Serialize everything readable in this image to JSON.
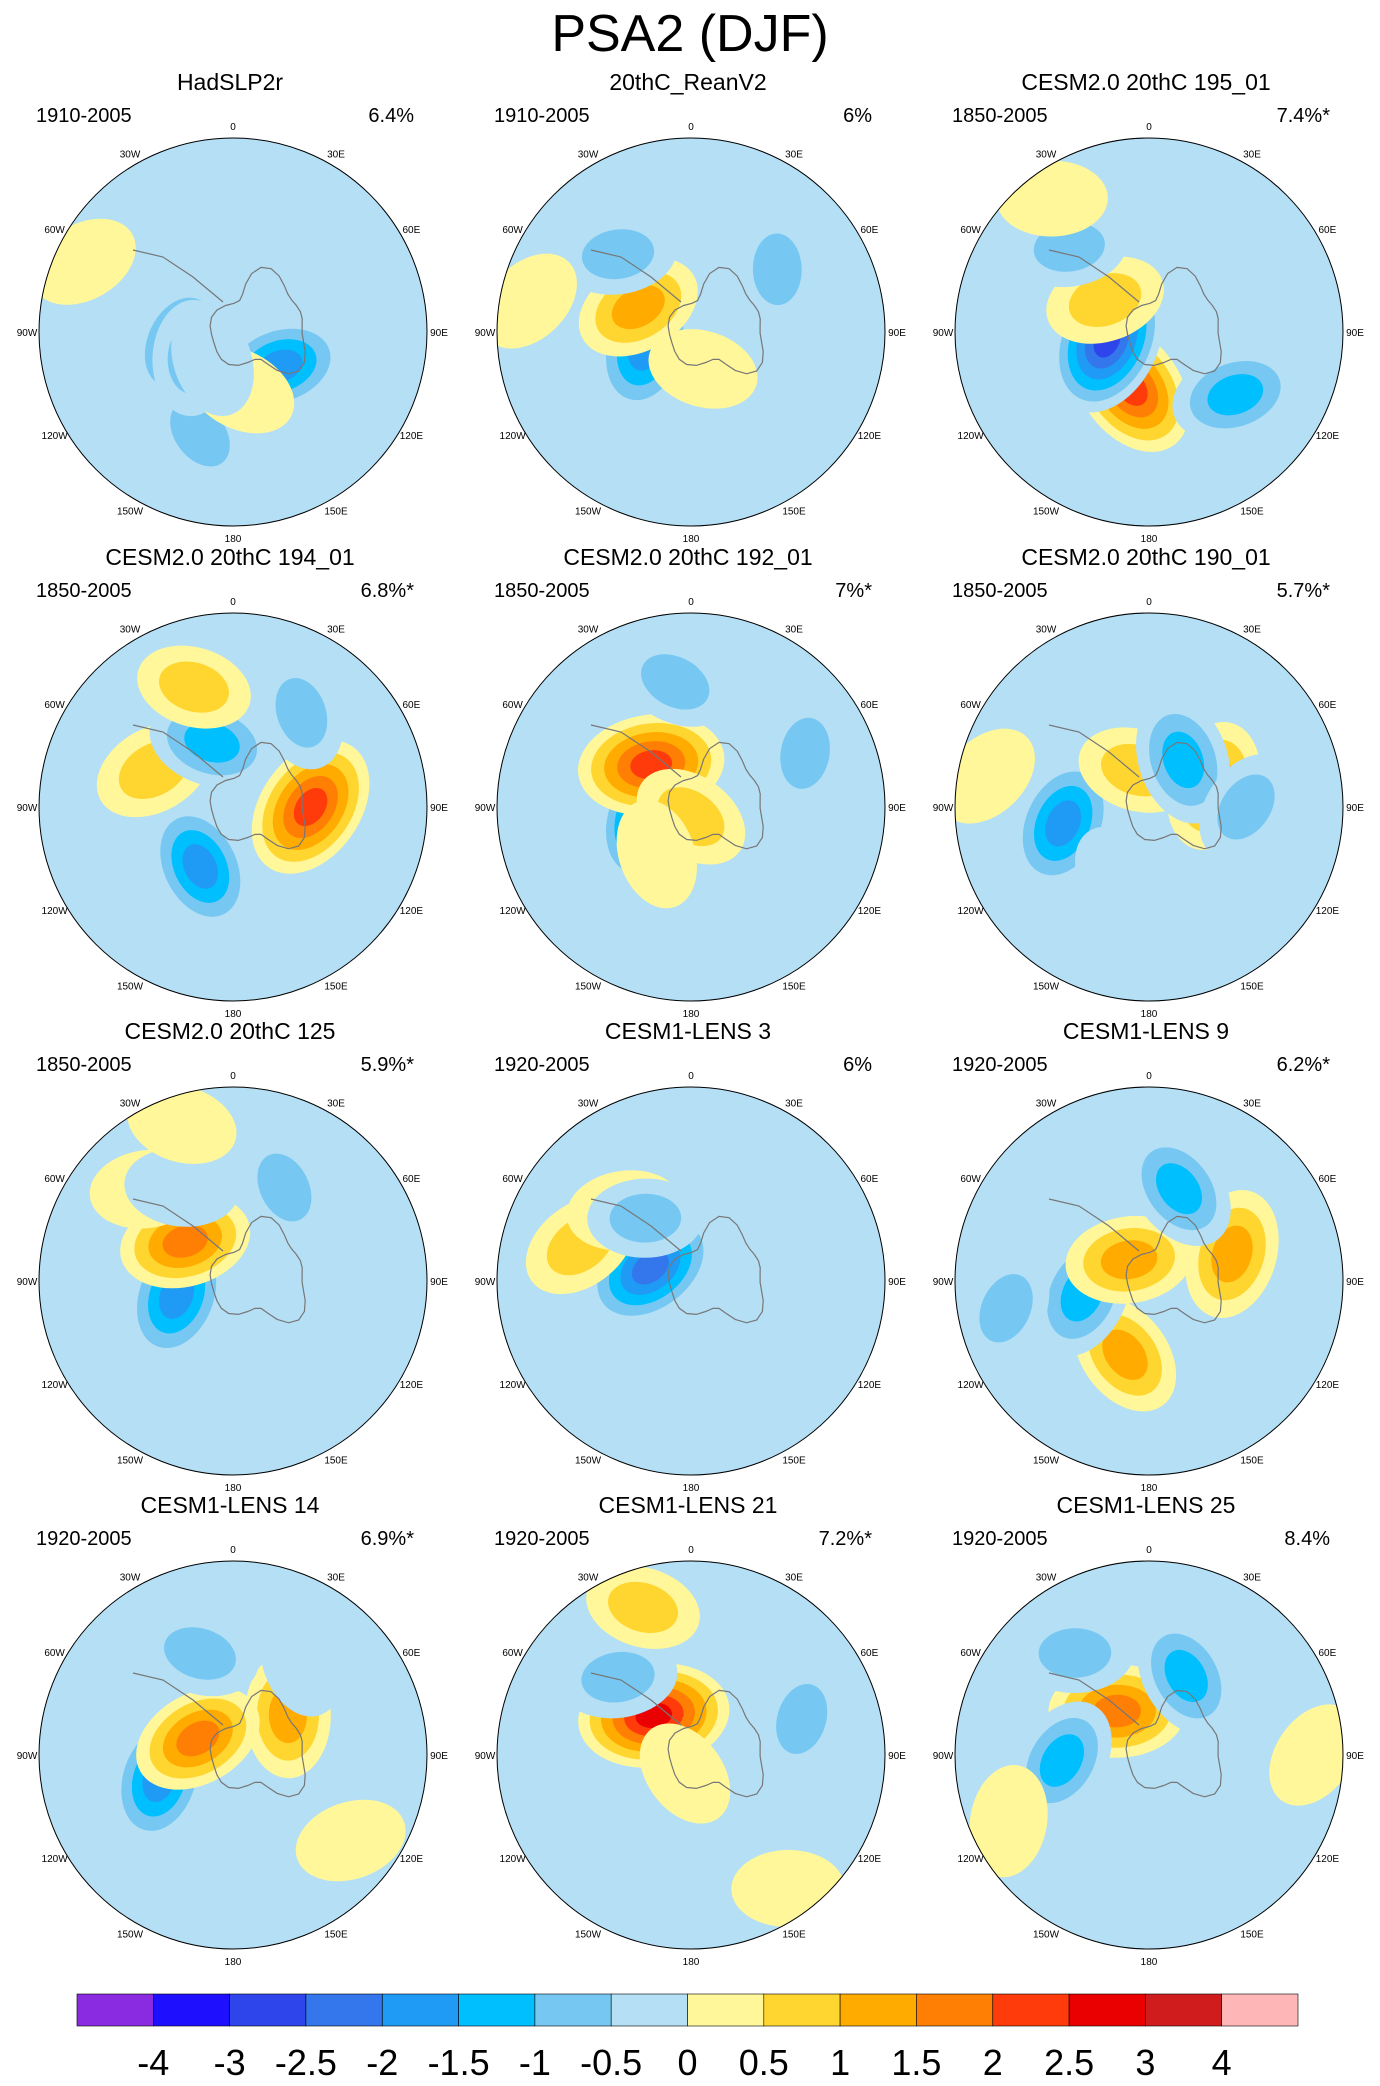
{
  "title": "PSA2 (DJF)",
  "chart_data": {
    "type": "polar_contour_maps",
    "title": "PSA2 (DJF)",
    "panels": [
      {
        "title": "HadSLP2r",
        "period": "1910-2005",
        "pct": "6.4%",
        "blobs": [
          [
            0.3,
            0.35,
            -1.6
          ],
          [
            0.55,
            0.55,
            -0.8
          ],
          [
            0.28,
            0.72,
            -1.4
          ],
          [
            0.3,
            0.48,
            0.5
          ],
          [
            0.25,
            0.66,
            -0.6
          ],
          [
            0.18,
            0.6,
            -0.5
          ],
          [
            0.85,
            0.82,
            0.3
          ]
        ]
      },
      {
        "title": "20thC_ReanV2",
        "period": "1910-2005",
        "pct": "6%",
        "blobs": [
          [
            0.25,
            0.7,
            -2.0
          ],
          [
            0.3,
            0.82,
            1.3
          ],
          [
            0.55,
            0.88,
            -0.7
          ],
          [
            0.55,
            0.15,
            -0.6
          ],
          [
            0.2,
            0.45,
            0.3
          ],
          [
            0.85,
            0.78,
            0.3
          ]
        ]
      },
      {
        "title": "CESM2.0 20thC 195_01",
        "period": "1850-2005",
        "pct": "7.4%*",
        "blobs": [
          [
            0.3,
            0.55,
            2.3
          ],
          [
            0.22,
            0.72,
            -2.8
          ],
          [
            0.55,
            0.35,
            -1.4
          ],
          [
            0.28,
            0.85,
            0.9
          ],
          [
            0.6,
            0.88,
            -0.6
          ],
          [
            0.55,
            0.12,
            -0.5
          ],
          [
            0.85,
            0.9,
            0.3
          ]
        ]
      },
      {
        "title": "CESM2.0 20thC 194_01",
        "period": "1850-2005",
        "pct": "6.8%*",
        "blobs": [
          [
            0.4,
            0.25,
            2.5
          ],
          [
            0.35,
            0.58,
            -1.8
          ],
          [
            0.45,
            0.82,
            1.0
          ],
          [
            0.35,
            0.95,
            -1.3
          ],
          [
            0.65,
            0.95,
            0.6
          ],
          [
            0.6,
            0.1,
            -0.6
          ]
        ]
      },
      {
        "title": "CESM2.0 20thC 192_01",
        "period": "1850-2005",
        "pct": "7%*",
        "blobs": [
          [
            0.2,
            0.72,
            -2.6
          ],
          [
            0.3,
            0.88,
            2.5
          ],
          [
            0.05,
            0.5,
            0.8
          ],
          [
            0.65,
            0.18,
            -0.6
          ],
          [
            0.65,
            0.98,
            -0.7
          ],
          [
            0.3,
            0.6,
            0.3
          ]
        ]
      },
      {
        "title": "CESM2.0 20thC 190_01",
        "period": "1850-2005",
        "pct": "5.7%*",
        "blobs": [
          [
            0.45,
            0.72,
            -2.0
          ],
          [
            0.35,
            0.2,
            1.5
          ],
          [
            0.2,
            0.95,
            0.8
          ],
          [
            0.3,
            0.1,
            -1.5
          ],
          [
            0.5,
            0.25,
            -0.6
          ],
          [
            0.4,
            0.56,
            -0.5
          ],
          [
            0.85,
            0.78,
            0.3
          ]
        ]
      },
      {
        "title": "CESM2.0 20thC 125",
        "period": "1850-2005",
        "pct": "5.9%*",
        "blobs": [
          [
            0.3,
            0.71,
            -2.0
          ],
          [
            0.32,
            0.86,
            1.6
          ],
          [
            0.65,
            0.88,
            0.5
          ],
          [
            0.55,
            0.08,
            -0.6
          ],
          [
            0.55,
            0.92,
            -0.5
          ],
          [
            0.85,
            0.95,
            0.3
          ]
        ]
      },
      {
        "title": "CESM1-LENS 3",
        "period": "1920-2005",
        "pct": "6%",
        "blobs": [
          [
            0.22,
            0.8,
            -2.3
          ],
          [
            0.6,
            0.8,
            0.9
          ],
          [
            0.5,
            0.88,
            0.6
          ],
          [
            0.65,
            0.3,
            -0.4
          ],
          [
            0.4,
            0.9,
            -0.6
          ]
        ]
      },
      {
        "title": "CESM1-LENS 9",
        "period": "1920-2005",
        "pct": "6.2%*",
        "blobs": [
          [
            0.4,
            0.55,
            1.2
          ],
          [
            0.45,
            0.2,
            1.5
          ],
          [
            0.35,
            0.72,
            -1.5
          ],
          [
            0.15,
            0.88,
            1.3
          ],
          [
            0.5,
            0.05,
            -1.3
          ],
          [
            0.75,
            0.72,
            -0.6
          ]
        ]
      },
      {
        "title": "CESM1-LENS 14",
        "period": "1920-2005",
        "pct": "6.9%*",
        "blobs": [
          [
            0.4,
            0.7,
            -1.8
          ],
          [
            0.35,
            0.15,
            1.2
          ],
          [
            0.2,
            0.82,
            1.6
          ],
          [
            0.55,
            0.95,
            -0.8
          ],
          [
            0.6,
            0.1,
            -0.5
          ],
          [
            0.75,
            0.35,
            0.4
          ]
        ]
      },
      {
        "title": "CESM1-LENS 21",
        "period": "1920-2005",
        "pct": "7.2%*",
        "blobs": [
          [
            0.28,
            0.88,
            2.8
          ],
          [
            0.55,
            0.88,
            -0.8
          ],
          [
            0.6,
            0.2,
            -0.6
          ],
          [
            0.8,
            0.95,
            0.6
          ],
          [
            0.85,
            0.4,
            0.4
          ],
          [
            0.1,
            0.55,
            0.3
          ]
        ]
      },
      {
        "title": "CESM1-LENS 25",
        "period": "1920-2005",
        "pct": "8.4%",
        "blobs": [
          [
            0.28,
            0.9,
            1.9
          ],
          [
            0.45,
            0.07,
            -1.2
          ],
          [
            0.45,
            0.74,
            -1.3
          ],
          [
            0.65,
            0.9,
            -0.7
          ],
          [
            0.8,
            0.68,
            0.4
          ],
          [
            0.85,
            0.25,
            0.3
          ]
        ]
      }
    ],
    "longitude_labels": [
      "0",
      "30E",
      "60E",
      "90E",
      "120E",
      "150E",
      "180",
      "150W",
      "120W",
      "90W",
      "60W",
      "30W"
    ],
    "colorbar": {
      "labels": [
        "-4",
        "-3",
        "-2.5",
        "-2",
        "-1.5",
        "-1",
        "-0.5",
        "0",
        "0.5",
        "1",
        "1.5",
        "2",
        "2.5",
        "3",
        "4"
      ],
      "levels": [
        -4,
        -3,
        -2.5,
        -2,
        -1.5,
        -1,
        -0.5,
        0,
        0.5,
        1,
        1.5,
        2,
        2.5,
        3,
        4
      ],
      "colors": [
        "#8a2be2",
        "#1e10ff",
        "#2f45ec",
        "#3476ec",
        "#1f9bf5",
        "#00bfff",
        "#76c8f2",
        "#b4dff5",
        "#fff79a",
        "#ffd530",
        "#ffab00",
        "#ff7f05",
        "#ff3b0b",
        "#ea0000",
        "#d01c1c",
        "#ffb6b6"
      ]
    }
  }
}
